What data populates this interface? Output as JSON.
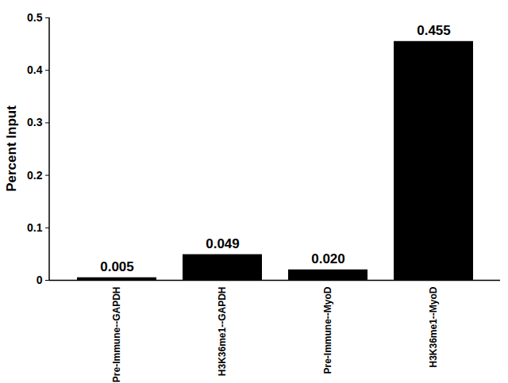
{
  "chart_data": {
    "type": "bar",
    "y_label": "Percent Input",
    "categories": [
      "Pre-Immune--GAPDH",
      "H3K36me1--GAPDH",
      "Pre-Immune--MyoD",
      "H3K36me1--MyoD"
    ],
    "values": [
      0.005,
      0.049,
      0.02,
      0.455
    ],
    "value_labels": [
      "0.005",
      "0.049",
      "0.020",
      "0.455"
    ],
    "color": "#000000",
    "ylim": [
      0,
      0.5
    ],
    "yticks": [
      0,
      0.1,
      0.2,
      0.3,
      0.4,
      0.5
    ],
    "grid": false,
    "data_labels": true
  }
}
